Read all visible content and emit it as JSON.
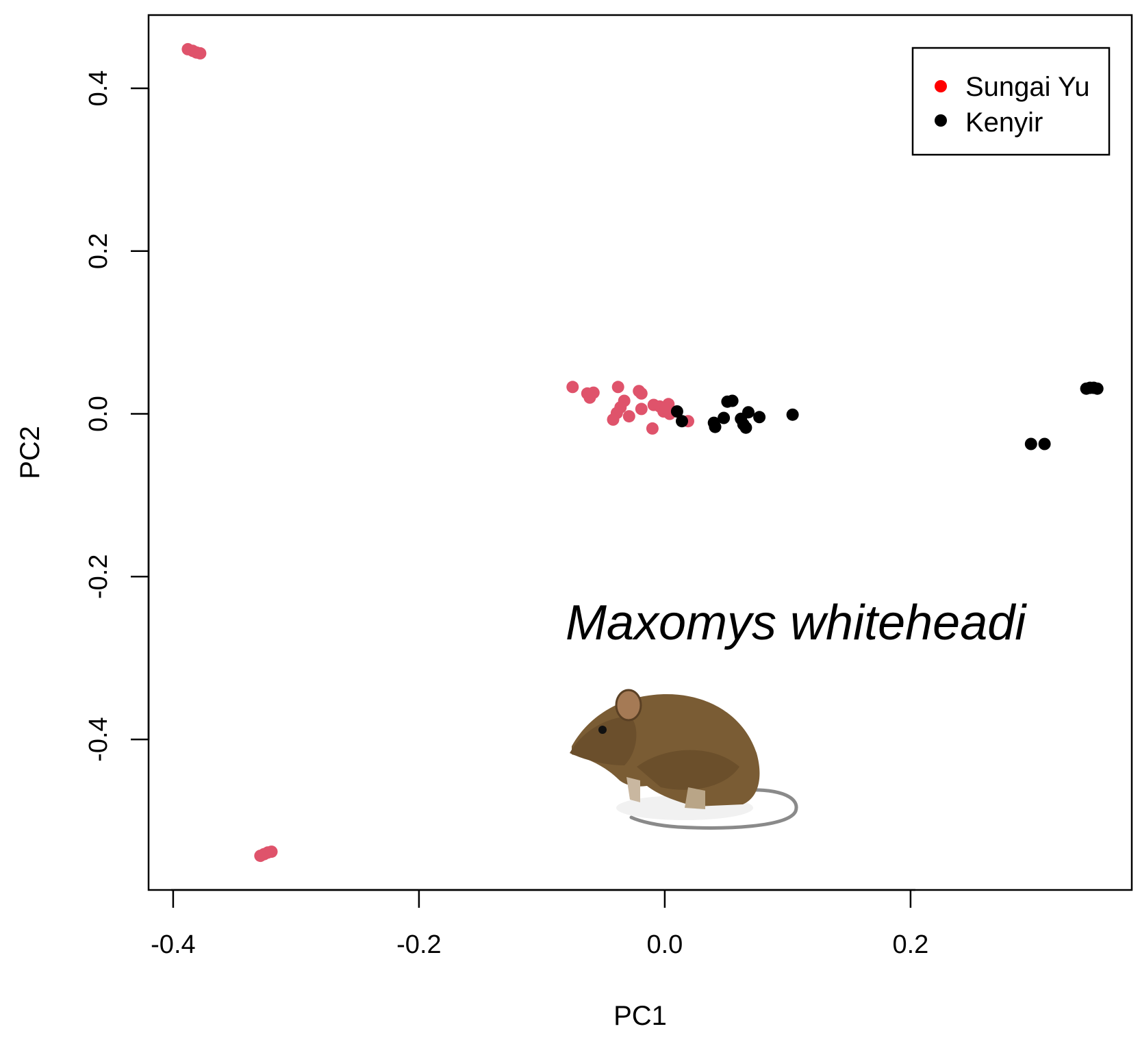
{
  "chart_data": {
    "type": "scatter",
    "title": "",
    "xlabel": "PC1",
    "ylabel": "PC2",
    "xlim": [
      -0.42,
      0.38
    ],
    "ylim": [
      -0.585,
      0.49
    ],
    "xticks": [
      -0.4,
      -0.2,
      0.0,
      0.2
    ],
    "xtick_labels": [
      "-0.4",
      "-0.2",
      "0.0",
      "0.2"
    ],
    "yticks": [
      0.4,
      0.2,
      0.0,
      -0.2,
      -0.4
    ],
    "ytick_labels": [
      "0.4",
      "0.2",
      "0.0",
      "-0.2",
      "-0.4"
    ],
    "grid": false,
    "legend_position": "top-right",
    "annotation": "Maxomys whiteheadi",
    "series": [
      {
        "name": "Sungai Yu",
        "legend_color": "#ff0000",
        "color": "#df536b",
        "points": [
          [
            -0.388,
            0.448
          ],
          [
            -0.384,
            0.446
          ],
          [
            -0.381,
            0.444
          ],
          [
            -0.378,
            0.443
          ],
          [
            -0.329,
            -0.543
          ],
          [
            -0.326,
            -0.541
          ],
          [
            -0.323,
            -0.539
          ],
          [
            -0.32,
            -0.538
          ],
          [
            -0.075,
            0.033
          ],
          [
            -0.063,
            0.025
          ],
          [
            -0.061,
            0.02
          ],
          [
            -0.058,
            0.026
          ],
          [
            -0.038,
            0.033
          ],
          [
            -0.021,
            0.028
          ],
          [
            -0.019,
            0.025
          ],
          [
            -0.033,
            0.016
          ],
          [
            -0.036,
            0.008
          ],
          [
            -0.039,
            0.001
          ],
          [
            -0.042,
            -0.007
          ],
          [
            -0.029,
            -0.003
          ],
          [
            -0.019,
            0.006
          ],
          [
            -0.009,
            0.011
          ],
          [
            -0.004,
            0.009
          ],
          [
            0.003,
            0.012
          ],
          [
            -0.001,
            0.003
          ],
          [
            0.004,
            0.0
          ],
          [
            0.001,
            0.007
          ],
          [
            -0.01,
            -0.018
          ],
          [
            0.019,
            -0.009
          ]
        ]
      },
      {
        "name": "Kenyir",
        "legend_color": "#000000",
        "color": "#000000",
        "points": [
          [
            0.01,
            0.003
          ],
          [
            0.014,
            -0.009
          ],
          [
            0.04,
            -0.011
          ],
          [
            0.041,
            -0.016
          ],
          [
            0.048,
            -0.005
          ],
          [
            0.051,
            0.015
          ],
          [
            0.055,
            0.016
          ],
          [
            0.062,
            -0.006
          ],
          [
            0.064,
            -0.013
          ],
          [
            0.066,
            -0.017
          ],
          [
            0.068,
            0.002
          ],
          [
            0.077,
            -0.004
          ],
          [
            0.104,
            -0.001
          ],
          [
            0.298,
            -0.037
          ],
          [
            0.309,
            -0.037
          ],
          [
            0.343,
            0.031
          ],
          [
            0.346,
            0.032
          ],
          [
            0.349,
            0.032
          ],
          [
            0.352,
            0.031
          ]
        ]
      }
    ]
  }
}
